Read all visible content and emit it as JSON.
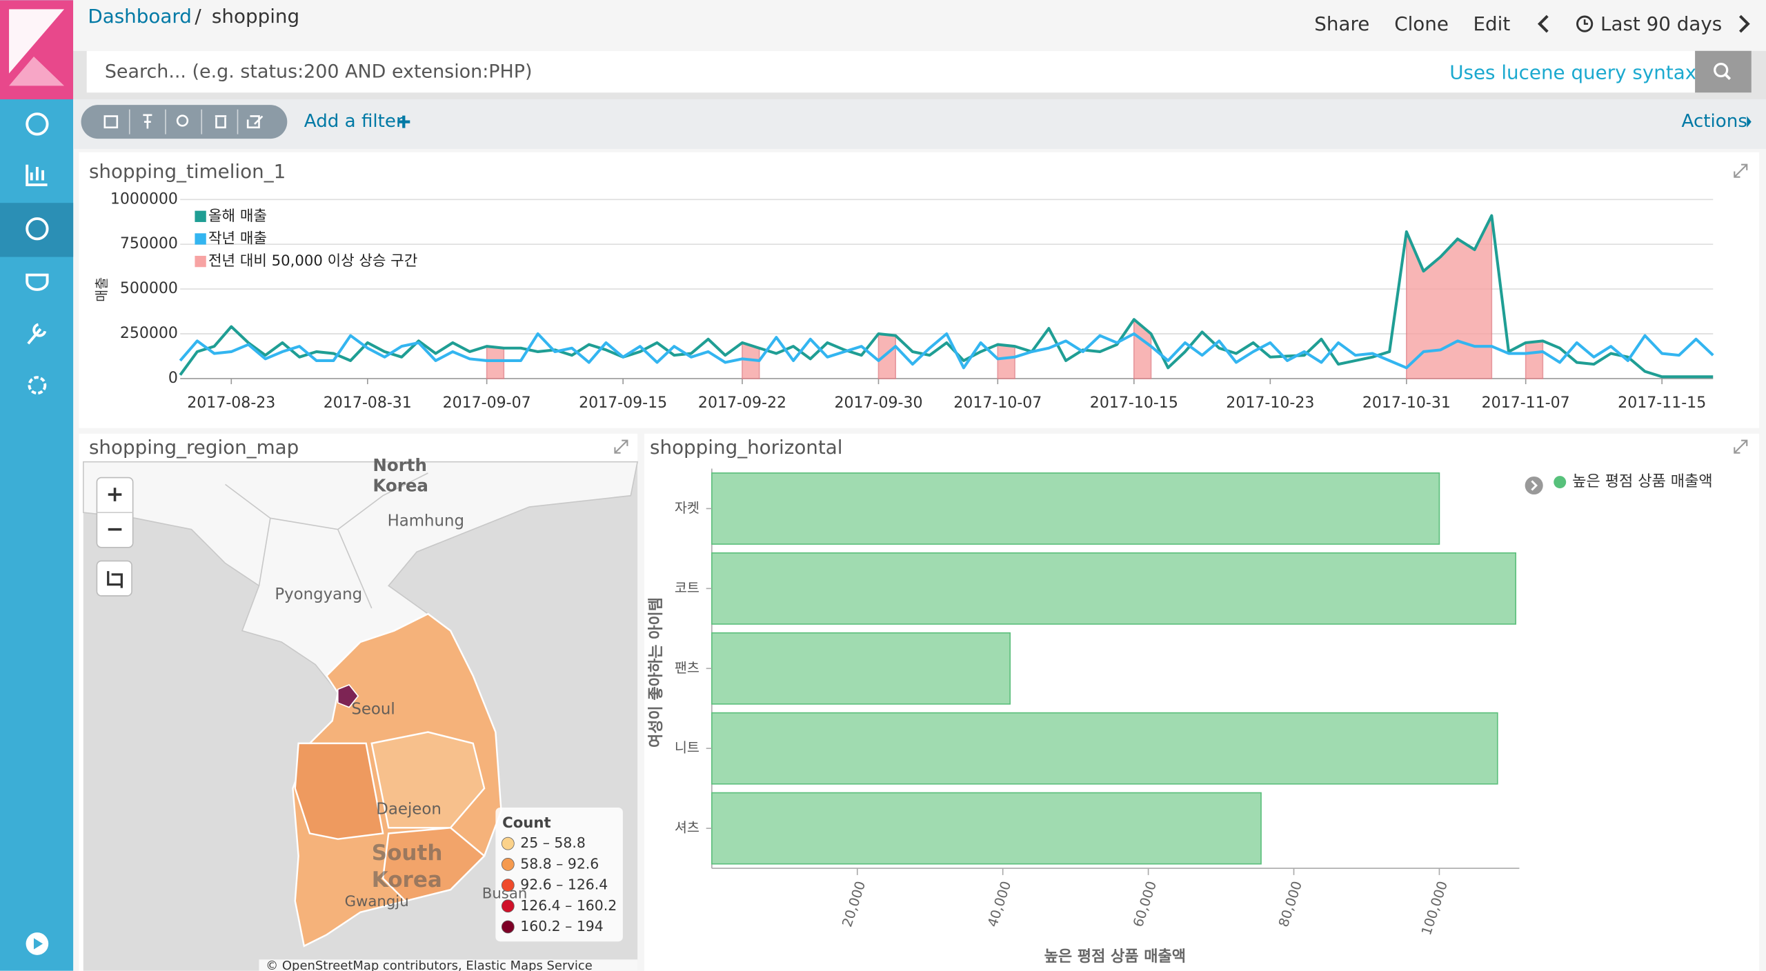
{
  "header": {
    "breadcrumb": [
      "Dashboard",
      "shopping"
    ],
    "menu": [
      "Share",
      "Clone",
      "Edit"
    ],
    "time_range": "Last 90 days"
  },
  "search": {
    "placeholder": "Search... (e.g. status:200 AND extension:PHP)",
    "syntax_link": "Uses lucene query syntax"
  },
  "filter_bar": {
    "add_filter": "Add a filter",
    "actions": "Actions"
  },
  "map": {
    "title": "shopping_region_map",
    "labels": [
      "North",
      "Korea",
      "Hamhung",
      "Pyongyang",
      "Seoul",
      "Daejeon",
      "South",
      "Korea",
      "Busan",
      "Gwangju"
    ],
    "legend_title": "Count",
    "legend": [
      {
        "label": "25 – 58.8",
        "color": "#fbd28a"
      },
      {
        "label": "58.8 – 92.6",
        "color": "#f59a4f"
      },
      {
        "label": "92.6 – 126.4",
        "color": "#ef4b2c"
      },
      {
        "label": "126.4 – 160.2",
        "color": "#d0122a"
      },
      {
        "label": "160.2 – 194",
        "color": "#7d0026"
      }
    ],
    "attribution": "© OpenStreetMap contributors, Elastic Maps Service"
  },
  "chart_data": [
    {
      "type": "line",
      "title": "shopping_timelion_1",
      "y_label": "매출",
      "x": [
        "2017-08-20",
        "2017-08-21",
        "2017-08-22",
        "2017-08-23",
        "2017-08-24",
        "2017-08-25",
        "2017-08-26",
        "2017-08-27",
        "2017-08-28",
        "2017-08-29",
        "2017-08-30",
        "2017-08-31",
        "2017-09-01",
        "2017-09-02",
        "2017-09-03",
        "2017-09-04",
        "2017-09-05",
        "2017-09-06",
        "2017-09-07",
        "2017-09-08",
        "2017-09-09",
        "2017-09-10",
        "2017-09-11",
        "2017-09-12",
        "2017-09-13",
        "2017-09-14",
        "2017-09-15",
        "2017-09-16",
        "2017-09-17",
        "2017-09-18",
        "2017-09-19",
        "2017-09-20",
        "2017-09-21",
        "2017-09-22",
        "2017-09-23",
        "2017-09-24",
        "2017-09-25",
        "2017-09-26",
        "2017-09-27",
        "2017-09-28",
        "2017-09-29",
        "2017-09-30",
        "2017-10-01",
        "2017-10-02",
        "2017-10-03",
        "2017-10-04",
        "2017-10-05",
        "2017-10-06",
        "2017-10-07",
        "2017-10-08",
        "2017-10-09",
        "2017-10-10",
        "2017-10-11",
        "2017-10-12",
        "2017-10-13",
        "2017-10-14",
        "2017-10-15",
        "2017-10-16",
        "2017-10-17",
        "2017-10-18",
        "2017-10-19",
        "2017-10-20",
        "2017-10-21",
        "2017-10-22",
        "2017-10-23",
        "2017-10-24",
        "2017-10-25",
        "2017-10-26",
        "2017-10-27",
        "2017-10-28",
        "2017-10-29",
        "2017-10-30",
        "2017-10-31",
        "2017-11-01",
        "2017-11-02",
        "2017-11-03",
        "2017-11-04",
        "2017-11-05",
        "2017-11-06",
        "2017-11-07",
        "2017-11-08",
        "2017-11-09",
        "2017-11-10",
        "2017-11-11",
        "2017-11-12",
        "2017-11-13",
        "2017-11-14",
        "2017-11-15",
        "2017-11-16",
        "2017-11-17",
        "2017-11-18"
      ],
      "series": [
        {
          "name": "올해 매출",
          "color": "#1f9e94",
          "values": [
            20000,
            150000,
            180000,
            290000,
            200000,
            130000,
            200000,
            120000,
            150000,
            140000,
            100000,
            200000,
            150000,
            120000,
            210000,
            140000,
            200000,
            150000,
            180000,
            170000,
            170000,
            150000,
            160000,
            130000,
            190000,
            160000,
            120000,
            150000,
            200000,
            130000,
            140000,
            220000,
            130000,
            200000,
            170000,
            140000,
            180000,
            110000,
            200000,
            160000,
            130000,
            250000,
            240000,
            150000,
            130000,
            200000,
            100000,
            150000,
            190000,
            180000,
            150000,
            280000,
            100000,
            160000,
            150000,
            190000,
            330000,
            250000,
            60000,
            150000,
            260000,
            170000,
            140000,
            200000,
            120000,
            125000,
            130000,
            220000,
            80000,
            100000,
            120000,
            150000,
            820000,
            600000,
            680000,
            780000,
            720000,
            910000,
            150000,
            200000,
            210000,
            170000,
            90000,
            80000,
            140000,
            120000,
            40000,
            10000,
            10000,
            10000,
            10000
          ]
        },
        {
          "name": "작년 매출",
          "color": "#33b5f0",
          "values": [
            100000,
            210000,
            140000,
            150000,
            190000,
            110000,
            150000,
            180000,
            100000,
            100000,
            240000,
            170000,
            120000,
            180000,
            200000,
            100000,
            150000,
            110000,
            100000,
            100000,
            100000,
            250000,
            150000,
            170000,
            90000,
            200000,
            120000,
            180000,
            90000,
            180000,
            120000,
            150000,
            90000,
            110000,
            100000,
            230000,
            100000,
            220000,
            120000,
            150000,
            180000,
            100000,
            180000,
            80000,
            170000,
            250000,
            60000,
            200000,
            110000,
            120000,
            150000,
            170000,
            210000,
            150000,
            240000,
            200000,
            250000,
            180000,
            100000,
            200000,
            130000,
            210000,
            90000,
            150000,
            200000,
            100000,
            150000,
            90000,
            200000,
            130000,
            140000,
            100000,
            60000,
            150000,
            160000,
            210000,
            180000,
            180000,
            140000,
            140000,
            150000,
            90000,
            200000,
            120000,
            180000,
            100000,
            240000,
            140000,
            130000,
            220000,
            130000
          ]
        },
        {
          "name": "전년 대비 50,000 이상 상승 구간",
          "color": "#f7a3a3",
          "fill": true,
          "values": [
            null,
            null,
            null,
            null,
            null,
            null,
            null,
            null,
            null,
            null,
            null,
            null,
            null,
            null,
            null,
            null,
            null,
            null,
            180000,
            170000,
            null,
            null,
            null,
            null,
            null,
            null,
            null,
            null,
            null,
            null,
            null,
            null,
            null,
            200000,
            170000,
            null,
            null,
            null,
            null,
            null,
            null,
            250000,
            240000,
            null,
            null,
            null,
            null,
            null,
            190000,
            180000,
            null,
            null,
            null,
            null,
            null,
            null,
            330000,
            250000,
            null,
            null,
            null,
            null,
            null,
            null,
            null,
            null,
            null,
            null,
            null,
            null,
            null,
            null,
            820000,
            600000,
            680000,
            780000,
            720000,
            910000,
            null,
            200000,
            210000,
            null,
            null,
            null,
            null,
            null,
            null,
            null,
            null,
            null,
            null
          ]
        }
      ],
      "xticks": [
        "2017-08-23",
        "2017-08-31",
        "2017-09-07",
        "2017-09-15",
        "2017-09-22",
        "2017-09-30",
        "2017-10-07",
        "2017-10-15",
        "2017-10-23",
        "2017-10-31",
        "2017-11-07",
        "2017-11-15"
      ],
      "ylim": [
        0,
        1000000
      ],
      "yticks": [
        0,
        250000,
        500000,
        750000,
        1000000
      ],
      "grid": true,
      "legend": "upper-left"
    },
    {
      "type": "bar",
      "orientation": "horizontal",
      "title": "shopping_horizontal",
      "categories": [
        "자켓",
        "코트",
        "팬츠",
        "니트",
        "셔츠"
      ],
      "series": [
        {
          "name": "높은 평점 상품 매출액",
          "color": "#a0dbb0",
          "values": [
            100000,
            110500,
            41000,
            108000,
            75500
          ]
        }
      ],
      "x_label": "높은 평점 상품 매출액",
      "y_label": "여성이 좋아하는 아이템",
      "xlim": [
        0,
        111000
      ],
      "xticks": [
        {
          "value": 20000,
          "label": "20,000"
        },
        {
          "value": 40000,
          "label": "40,000"
        },
        {
          "value": 60000,
          "label": "60,000"
        },
        {
          "value": 80000,
          "label": "80,000"
        },
        {
          "value": 100000,
          "label": "100,000"
        }
      ],
      "legend": "upper-right"
    }
  ]
}
